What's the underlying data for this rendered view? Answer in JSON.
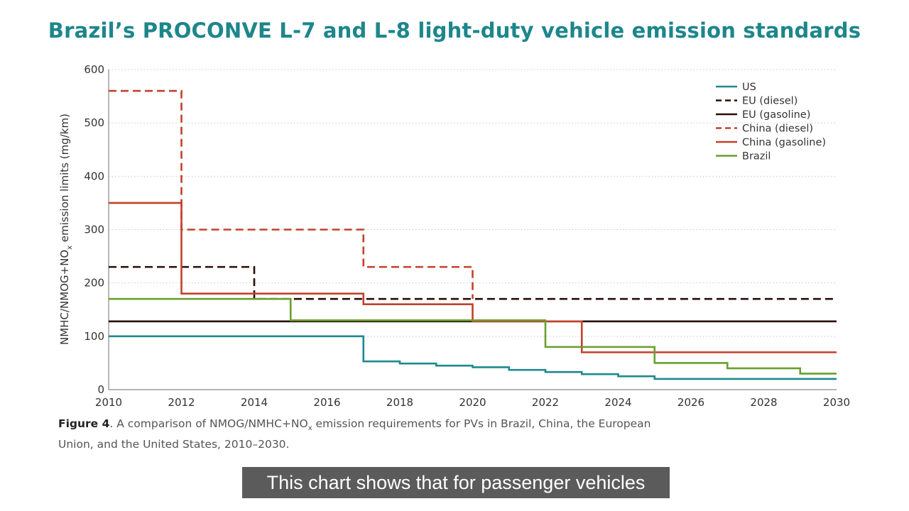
{
  "title": "Brazil’s PROCONVE L-7 and L-8 light-duty vehicle emission standards",
  "caption": {
    "label": "Figure 4",
    "text_pre": ". A comparison of NMOG/NMHC+NO",
    "text_sub": "x",
    "text_post": " emission requirements for PVs in Brazil, China, the European Union, and the United States, 2010–2030."
  },
  "subtitle": "This chart shows that for passenger vehicles",
  "chart_data": {
    "type": "line",
    "step": true,
    "ylabel_pre": "NMHC/NMOG+NO",
    "ylabel_sub": "x",
    "ylabel_post": " emission limits (mg/km)",
    "xlim": [
      2010,
      2030
    ],
    "ylim": [
      0,
      600
    ],
    "xticks": [
      "2010",
      "2012",
      "2014",
      "2016",
      "2018",
      "2020",
      "2022",
      "2024",
      "2026",
      "2028",
      "2030"
    ],
    "yticks": [
      "0",
      "100",
      "200",
      "300",
      "400",
      "500",
      "600"
    ],
    "grid": "horizontal dotted",
    "legend_position": "top-right",
    "series": [
      {
        "name": "US",
        "color": "#1d8a8f",
        "dashed": false,
        "steps": [
          [
            2010,
            100
          ],
          [
            2017,
            53
          ],
          [
            2018,
            49
          ],
          [
            2019,
            45
          ],
          [
            2020,
            42
          ],
          [
            2021,
            37
          ],
          [
            2022,
            33
          ],
          [
            2023,
            29
          ],
          [
            2024,
            25
          ],
          [
            2025,
            20
          ]
        ],
        "end": 2030
      },
      {
        "name": "EU (diesel)",
        "color": "#2a0d08",
        "dashed": true,
        "steps": [
          [
            2010,
            230
          ],
          [
            2014,
            170
          ]
        ],
        "end": 2030
      },
      {
        "name": "EU (gasoline)",
        "color": "#2a0d08",
        "dashed": false,
        "steps": [
          [
            2010,
            128
          ]
        ],
        "end": 2030
      },
      {
        "name": "China (diesel)",
        "color": "#c3412a",
        "dashed": true,
        "steps": [
          [
            2010,
            560
          ],
          [
            2012,
            300
          ],
          [
            2017,
            230
          ],
          [
            2020,
            170
          ]
        ],
        "end": 2020
      },
      {
        "name": "China (gasoline)",
        "color": "#c3412a",
        "dashed": false,
        "steps": [
          [
            2010,
            350
          ],
          [
            2012,
            180
          ],
          [
            2017,
            160
          ],
          [
            2020,
            128
          ],
          [
            2023,
            70
          ]
        ],
        "end": 2030
      },
      {
        "name": "Brazil",
        "color": "#6a9f2f",
        "dashed": false,
        "steps": [
          [
            2010,
            170
          ],
          [
            2015,
            130
          ],
          [
            2022,
            80
          ],
          [
            2025,
            50
          ],
          [
            2027,
            40
          ],
          [
            2029,
            30
          ]
        ],
        "end": 2030
      }
    ]
  }
}
